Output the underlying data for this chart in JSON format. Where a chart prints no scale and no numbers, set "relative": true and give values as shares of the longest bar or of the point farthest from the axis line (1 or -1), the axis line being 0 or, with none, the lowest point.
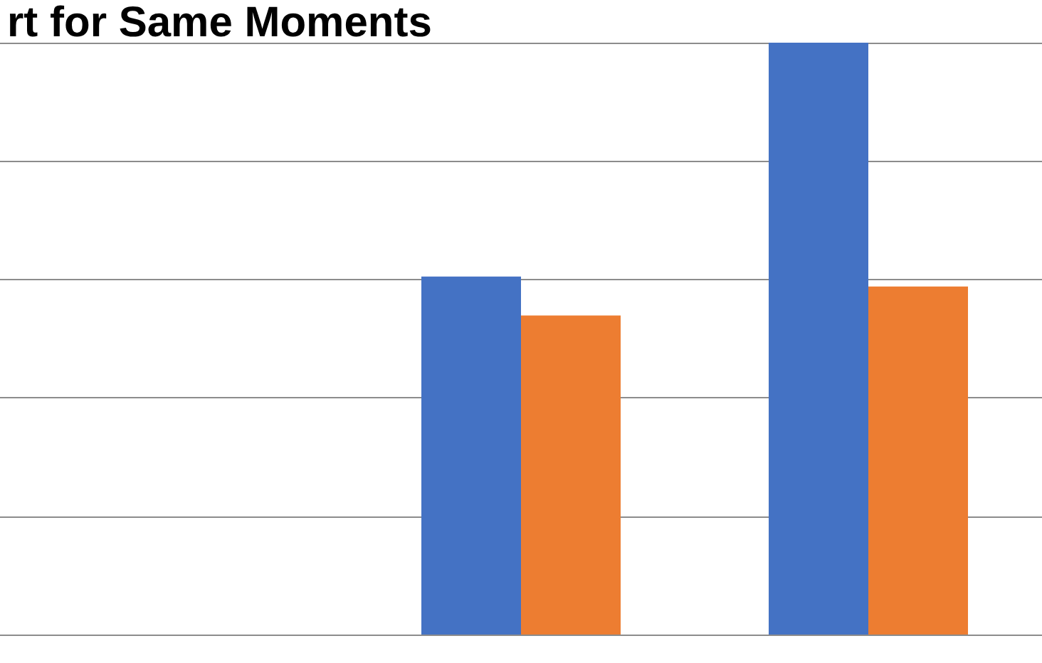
{
  "chart_data": {
    "type": "bar",
    "title": "rt for Same Moments",
    "relative": true,
    "grid": "y",
    "categories": [
      null,
      null
    ],
    "series": [
      {
        "color": "#4472c4",
        "values": [
          0.605,
          1
        ]
      },
      {
        "color": "#ed7d31",
        "values": [
          0.539,
          0.588
        ]
      }
    ]
  }
}
